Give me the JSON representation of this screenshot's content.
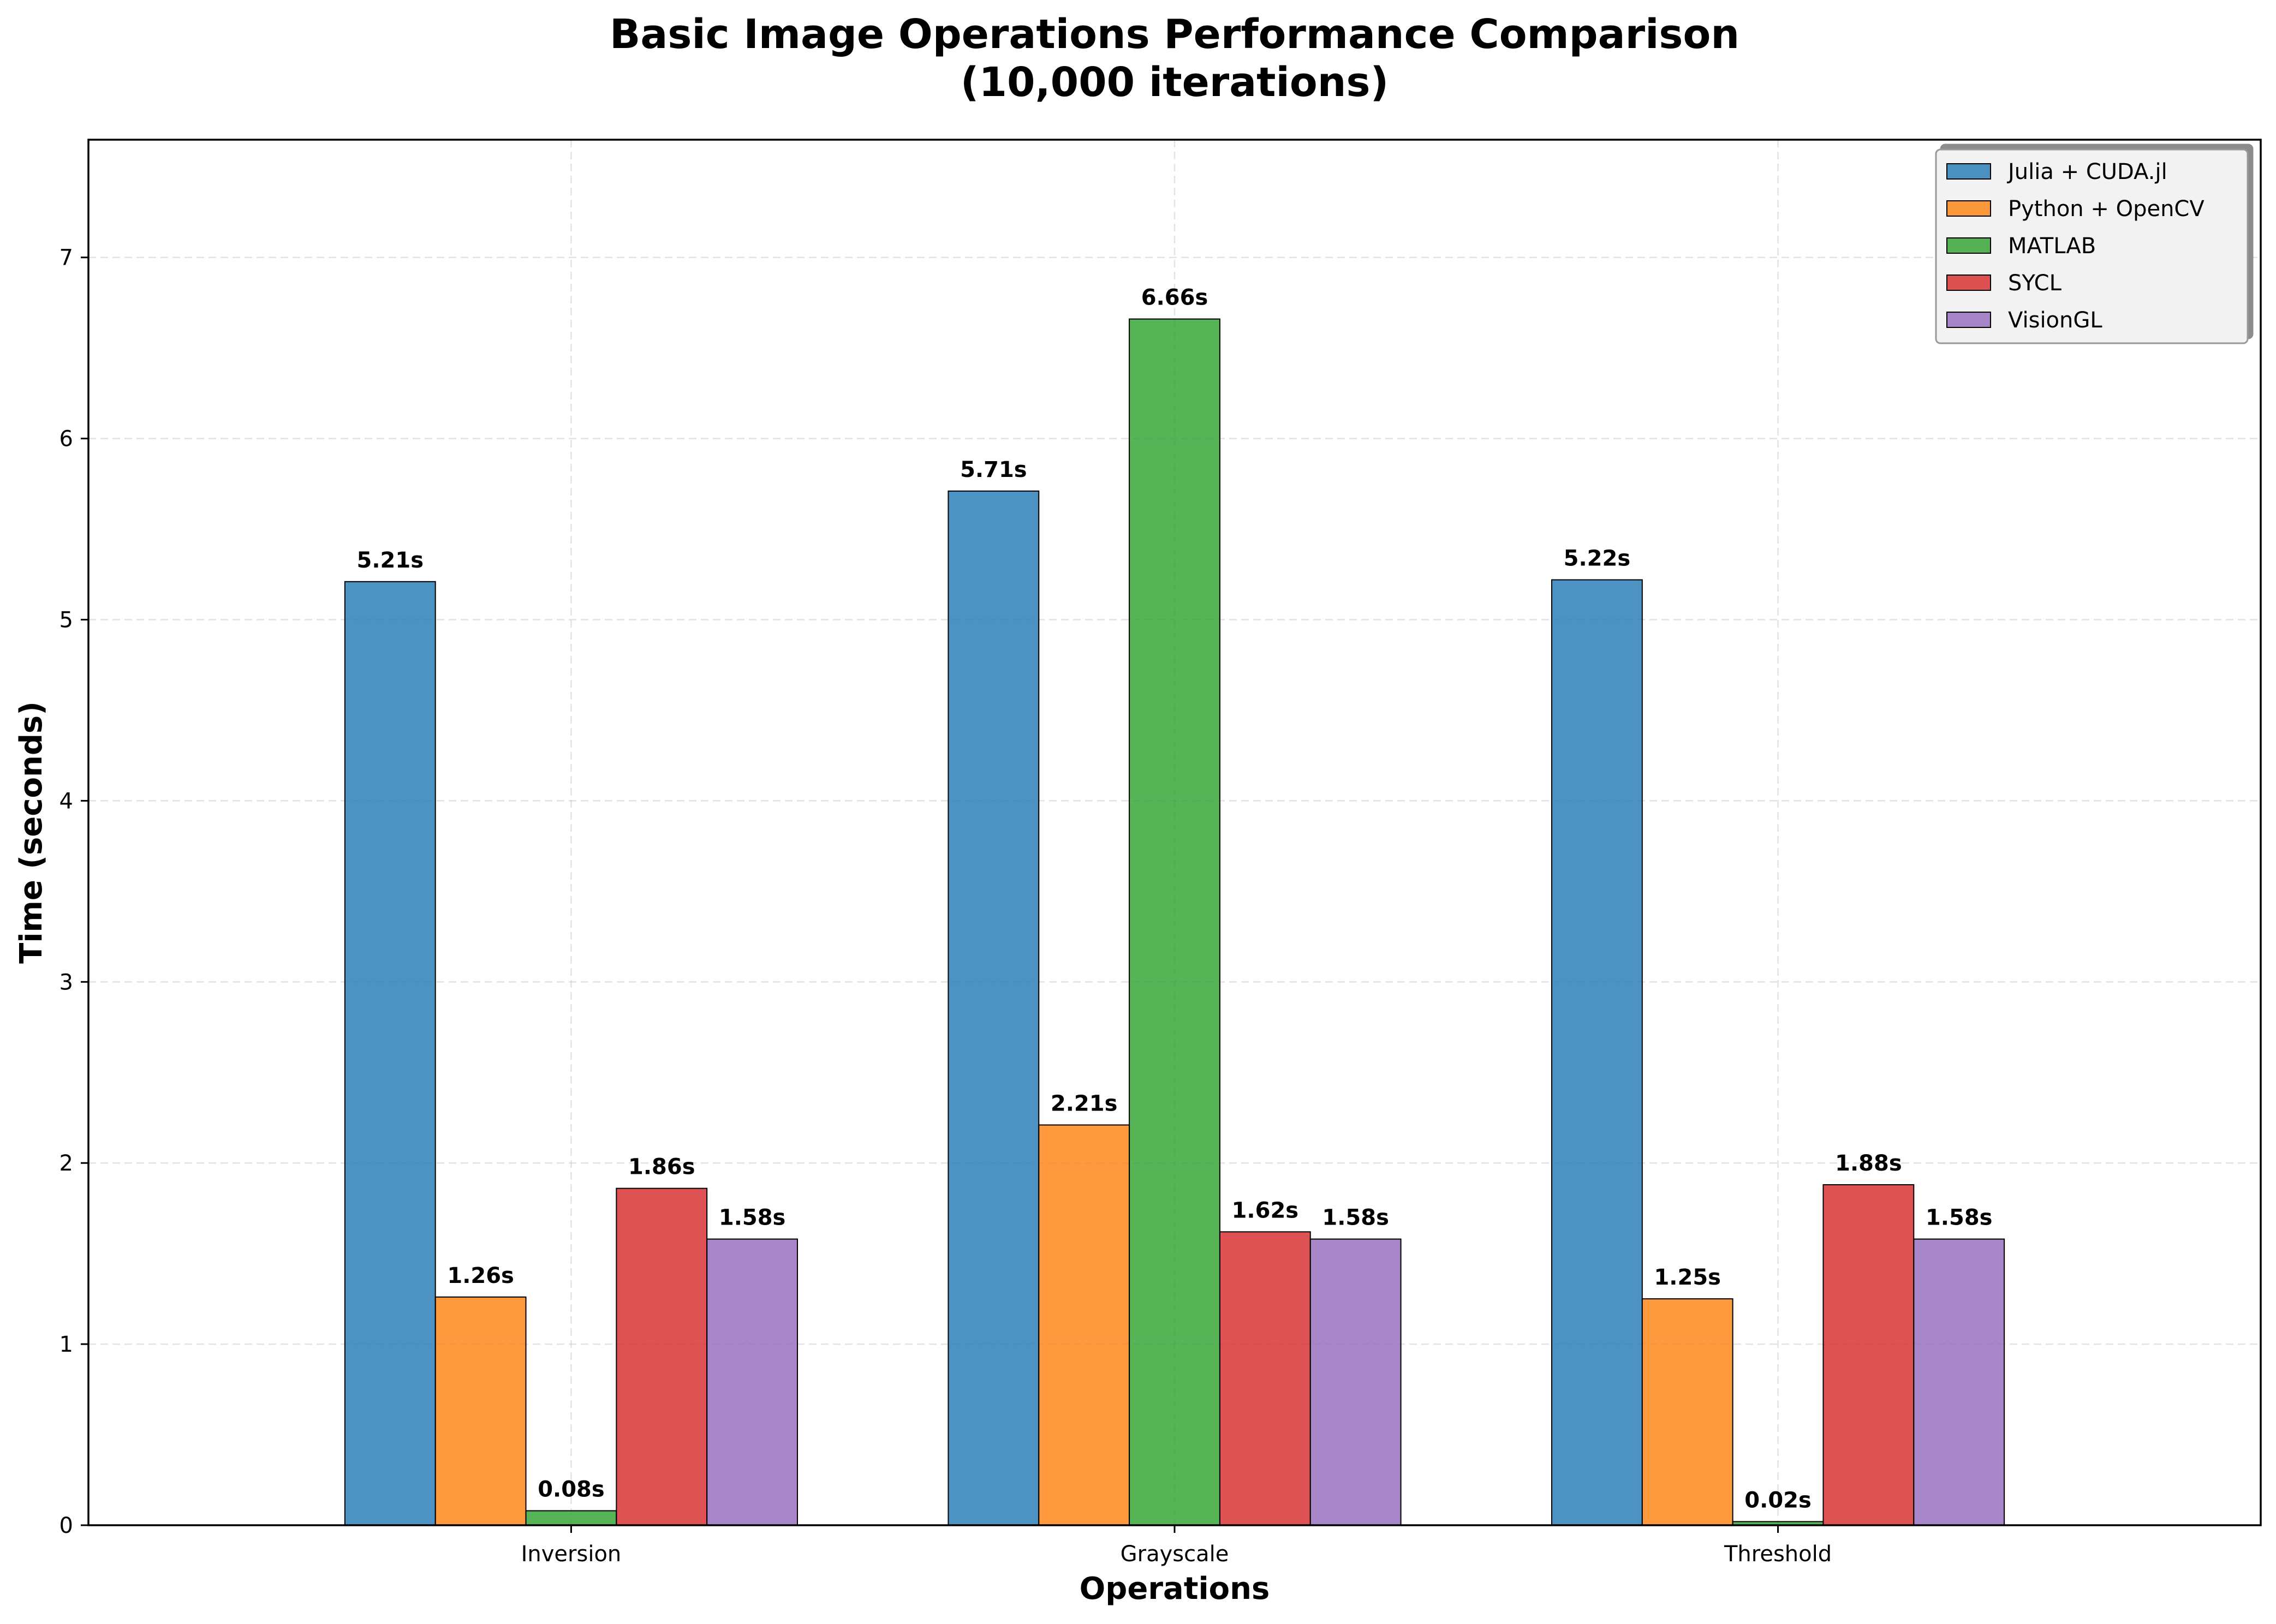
{
  "chart_data": {
    "type": "bar",
    "title": "Basic Image Operations Performance Comparison\n(10,000 iterations)",
    "xlabel": "Operations",
    "ylabel": "Time (seconds)",
    "categories": [
      "Inversion",
      "Grayscale",
      "Threshold"
    ],
    "ylim": [
      0,
      7.65
    ],
    "yticks": [
      0,
      1,
      2,
      3,
      4,
      5,
      6,
      7
    ],
    "grid": true,
    "legend_position": "top-right",
    "value_suffix": "s",
    "series": [
      {
        "name": "Julia + CUDA.jl",
        "color": "#1f77b4",
        "values": [
          5.21,
          5.71,
          5.22
        ]
      },
      {
        "name": "Python + OpenCV",
        "color": "#ff7f0e",
        "values": [
          1.26,
          2.21,
          1.25
        ]
      },
      {
        "name": "MATLAB",
        "color": "#2ca02c",
        "values": [
          0.08,
          6.66,
          0.02
        ]
      },
      {
        "name": "SYCL",
        "color": "#d62728",
        "values": [
          1.86,
          1.62,
          1.88
        ]
      },
      {
        "name": "VisionGL",
        "color": "#9467bd",
        "values": [
          1.58,
          1.58,
          1.58
        ]
      }
    ]
  }
}
